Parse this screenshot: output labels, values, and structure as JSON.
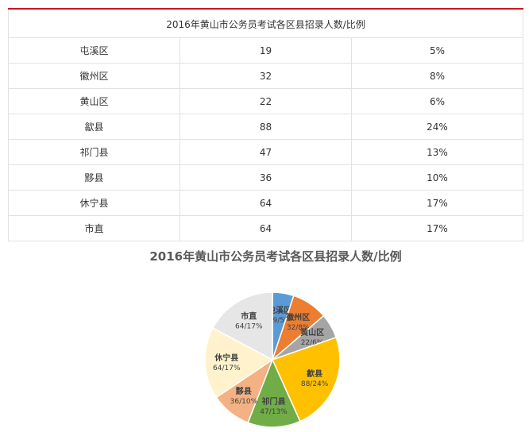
{
  "table": {
    "title": "2016年黄山市公务员考试各区县招录人数/比例",
    "rows": [
      {
        "district": "屯溪区",
        "count": "19",
        "ratio": "5%"
      },
      {
        "district": "徽州区",
        "count": "32",
        "ratio": "8%"
      },
      {
        "district": "黄山区",
        "count": "22",
        "ratio": "6%"
      },
      {
        "district": "歙县",
        "count": "88",
        "ratio": "24%"
      },
      {
        "district": "祁门县",
        "count": "47",
        "ratio": "13%"
      },
      {
        "district": "黟县",
        "count": "36",
        "ratio": "10%"
      },
      {
        "district": "休宁县",
        "count": "64",
        "ratio": "17%"
      },
      {
        "district": "市直",
        "count": "64",
        "ratio": "17%"
      }
    ]
  },
  "chart_data": {
    "type": "pie",
    "title": "2016年黄山市公务员考试各区县招录人数/比例",
    "categories": [
      "屯溪区",
      "徽州区",
      "黄山区",
      "歙县",
      "祁门县",
      "黟县",
      "休宁县",
      "市直"
    ],
    "values": [
      19,
      32,
      22,
      88,
      47,
      36,
      64,
      64
    ],
    "labels": [
      "19/5%",
      "32/8%",
      "22/6%",
      "88/24%",
      "47/13%",
      "36/10%",
      "64/17%",
      "64/17%"
    ],
    "colors": [
      "#5b9bd5",
      "#ed7d31",
      "#a5a5a5",
      "#ffc000",
      "#70ad47",
      "#f4b183",
      "#fff2cc",
      "#e7e6e6"
    ],
    "legend": "none",
    "data_labels": "inside"
  }
}
